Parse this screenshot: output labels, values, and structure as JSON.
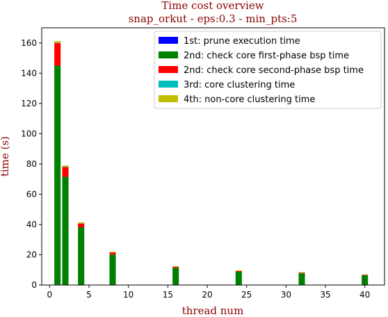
{
  "chart_data": {
    "type": "bar",
    "stacked": true,
    "title": "Time cost overview",
    "subtitle": "snap_orkut - eps:0.3 - min_pts:5",
    "xlabel": "thread num",
    "ylabel": "time (s)",
    "xlim": [
      -1,
      42.5
    ],
    "ylim": [
      0,
      170
    ],
    "xticks": [
      0,
      5,
      10,
      15,
      20,
      25,
      30,
      35,
      40
    ],
    "yticks": [
      0,
      20,
      40,
      60,
      80,
      100,
      120,
      140,
      160
    ],
    "grid": false,
    "legend_position": "top-right",
    "x": [
      1,
      2,
      4,
      8,
      16,
      24,
      32,
      40
    ],
    "bar_width": 0.8,
    "series": [
      {
        "name": "1st: prune execution time",
        "color": "#0000ff",
        "values": [
          0.3,
          0.2,
          0.1,
          0.1,
          0.1,
          0.1,
          0.1,
          0.1
        ]
      },
      {
        "name": "2nd: check core first-phase bsp time",
        "color": "#008000",
        "values": [
          144.7,
          71.3,
          38.0,
          20.0,
          11.2,
          8.6,
          7.6,
          6.3
        ]
      },
      {
        "name": "2nd: check core second-phase bsp time",
        "color": "#ff0000",
        "values": [
          15.0,
          6.5,
          2.5,
          1.3,
          0.7,
          0.5,
          0.4,
          0.3
        ]
      },
      {
        "name": "3rd: core clustering time",
        "color": "#00bfbf",
        "values": [
          0.2,
          0.2,
          0.1,
          0.1,
          0.1,
          0.1,
          0.1,
          0.1
        ]
      },
      {
        "name": "4th: non-core clustering time",
        "color": "#bfbf00",
        "values": [
          1.0,
          0.8,
          0.7,
          0.5,
          0.4,
          0.4,
          0.3,
          0.2
        ]
      }
    ]
  }
}
